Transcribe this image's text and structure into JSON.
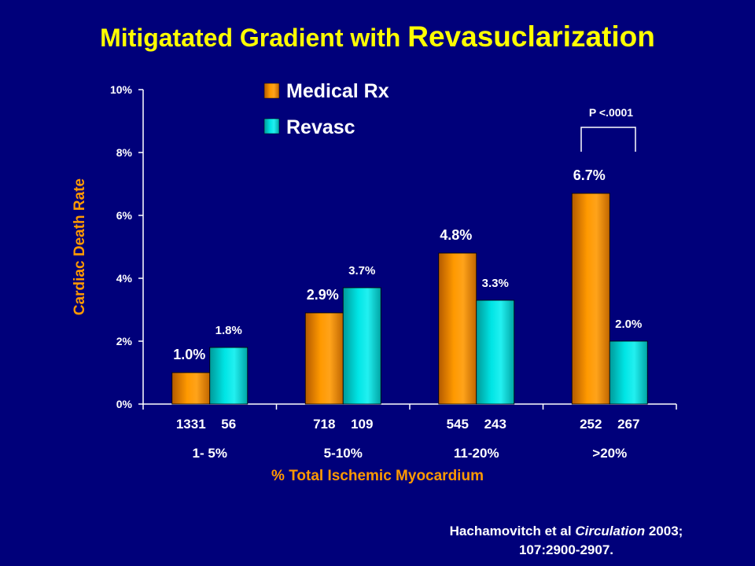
{
  "slide": {
    "title_part1": "Mitigatated Gradient with ",
    "title_part2": "Revasuclarization",
    "citation_part1": "Hachamovitch et al ",
    "citation_journal": "Circulation",
    "citation_part2": " 2003;",
    "citation_line2": "107:2900-2907."
  },
  "chart_data": {
    "type": "bar",
    "title": "Mitigatated Gradient with Revasuclarization",
    "xlabel": "% Total Ischemic Myocardium",
    "ylabel": "Cardiac Death Rate",
    "ylim": [
      0,
      10
    ],
    "y_ticks": [
      "0%",
      "2%",
      "4%",
      "6%",
      "8%",
      "10%"
    ],
    "grid": false,
    "legend_position": "top",
    "categories": [
      "1- 5%",
      "5-10%",
      "11-20%",
      ">20%"
    ],
    "patient_counts": [
      [
        "1331",
        "56"
      ],
      [
        "718",
        "109"
      ],
      [
        "545",
        "243"
      ],
      [
        "252",
        "267"
      ]
    ],
    "series": [
      {
        "name": "Medical Rx",
        "color": "#ff9900",
        "values": [
          1.0,
          2.9,
          4.8,
          6.7
        ],
        "labels": [
          "1.0%",
          "2.9%",
          "4.8%",
          "6.7%"
        ]
      },
      {
        "name": "Revasc",
        "color": "#00e0e0",
        "values": [
          1.8,
          3.7,
          3.3,
          2.0
        ],
        "labels": [
          "1.8%",
          "3.7%",
          "3.3%",
          "2.0%"
        ]
      }
    ],
    "annotation": "P <.0001"
  }
}
